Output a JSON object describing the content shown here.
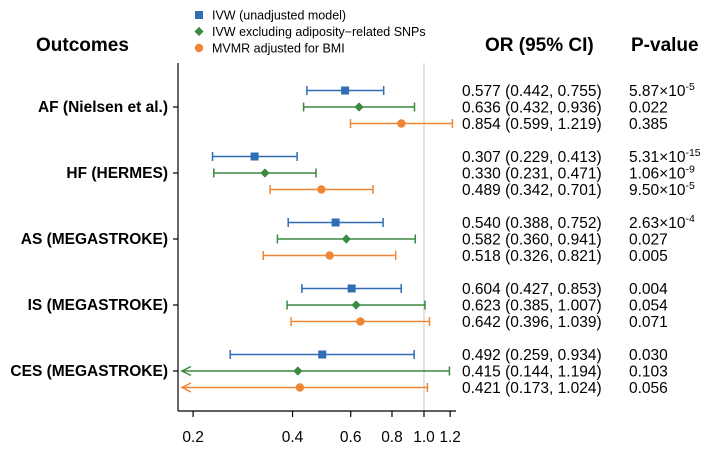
{
  "chart_data": {
    "type": "forest",
    "x_scale": "log",
    "xlim": [
      0.18,
      1.25
    ],
    "reference_line": 1.0,
    "x_ticks": [
      0.2,
      0.4,
      0.6,
      0.8,
      1.0,
      1.2
    ],
    "x_tick_labels": [
      "0.2",
      "0.4",
      "0.6",
      "0.8",
      "1.0",
      "1.2"
    ],
    "headers": {
      "outcomes": "Outcomes",
      "or": "OR (95% CI)",
      "p": "P-value"
    },
    "legend": [
      {
        "name": "IVW (unadjusted model)",
        "marker": "square",
        "color": "#2f6db5"
      },
      {
        "name": "IVW excluding adiposity−related SNPs",
        "marker": "diamond",
        "color": "#3a8a3f"
      },
      {
        "name": "MVMR adjusted for BMI",
        "marker": "circle",
        "color": "#ef8636"
      }
    ],
    "outcomes": [
      {
        "name": "AF (Nielsen et al.)",
        "rows": [
          {
            "or": 0.577,
            "lo": 0.442,
            "hi": 0.755,
            "text": "0.577 (0.442, 0.755)",
            "p_base": "5.87×10",
            "p_exp": "-5"
          },
          {
            "or": 0.636,
            "lo": 0.432,
            "hi": 0.936,
            "text": "0.636 (0.432, 0.936)",
            "p_base": "0.022",
            "p_exp": ""
          },
          {
            "or": 0.854,
            "lo": 0.599,
            "hi": 1.219,
            "text": "0.854 (0.599, 1.219)",
            "p_base": "0.385",
            "p_exp": ""
          }
        ]
      },
      {
        "name": "HF (HERMES)",
        "rows": [
          {
            "or": 0.307,
            "lo": 0.229,
            "hi": 0.413,
            "text": "0.307 (0.229, 0.413)",
            "p_base": "5.31×10",
            "p_exp": "-15"
          },
          {
            "or": 0.33,
            "lo": 0.231,
            "hi": 0.471,
            "text": "0.330 (0.231, 0.471)",
            "p_base": "1.06×10",
            "p_exp": "-9"
          },
          {
            "or": 0.489,
            "lo": 0.342,
            "hi": 0.701,
            "text": "0.489 (0.342, 0.701)",
            "p_base": "9.50×10",
            "p_exp": "-5"
          }
        ]
      },
      {
        "name": "AS (MEGASTROKE)",
        "rows": [
          {
            "or": 0.54,
            "lo": 0.388,
            "hi": 0.752,
            "text": "0.540 (0.388, 0.752)",
            "p_base": "2.63×10",
            "p_exp": "-4"
          },
          {
            "or": 0.582,
            "lo": 0.36,
            "hi": 0.941,
            "text": "0.582 (0.360, 0.941)",
            "p_base": "0.027",
            "p_exp": ""
          },
          {
            "or": 0.518,
            "lo": 0.326,
            "hi": 0.821,
            "text": "0.518 (0.326, 0.821)",
            "p_base": "0.005",
            "p_exp": ""
          }
        ]
      },
      {
        "name": "IS (MEGASTROKE)",
        "rows": [
          {
            "or": 0.604,
            "lo": 0.427,
            "hi": 0.853,
            "text": "0.604 (0.427, 0.853)",
            "p_base": "0.004",
            "p_exp": ""
          },
          {
            "or": 0.623,
            "lo": 0.385,
            "hi": 1.007,
            "text": "0.623 (0.385, 1.007)",
            "p_base": "0.054",
            "p_exp": ""
          },
          {
            "or": 0.642,
            "lo": 0.396,
            "hi": 1.039,
            "text": "0.642 (0.396, 1.039)",
            "p_base": "0.071",
            "p_exp": ""
          }
        ]
      },
      {
        "name": "CES (MEGASTROKE)",
        "rows": [
          {
            "or": 0.492,
            "lo": 0.259,
            "hi": 0.934,
            "text": "0.492 (0.259, 0.934)",
            "p_base": "0.030",
            "p_exp": ""
          },
          {
            "or": 0.415,
            "lo": 0.144,
            "hi": 1.194,
            "text": "0.415 (0.144, 1.194)",
            "p_base": "0.103",
            "p_exp": ""
          },
          {
            "or": 0.421,
            "lo": 0.173,
            "hi": 1.024,
            "text": "0.421 (0.173, 1.024)",
            "p_base": "0.056",
            "p_exp": ""
          }
        ]
      }
    ]
  }
}
